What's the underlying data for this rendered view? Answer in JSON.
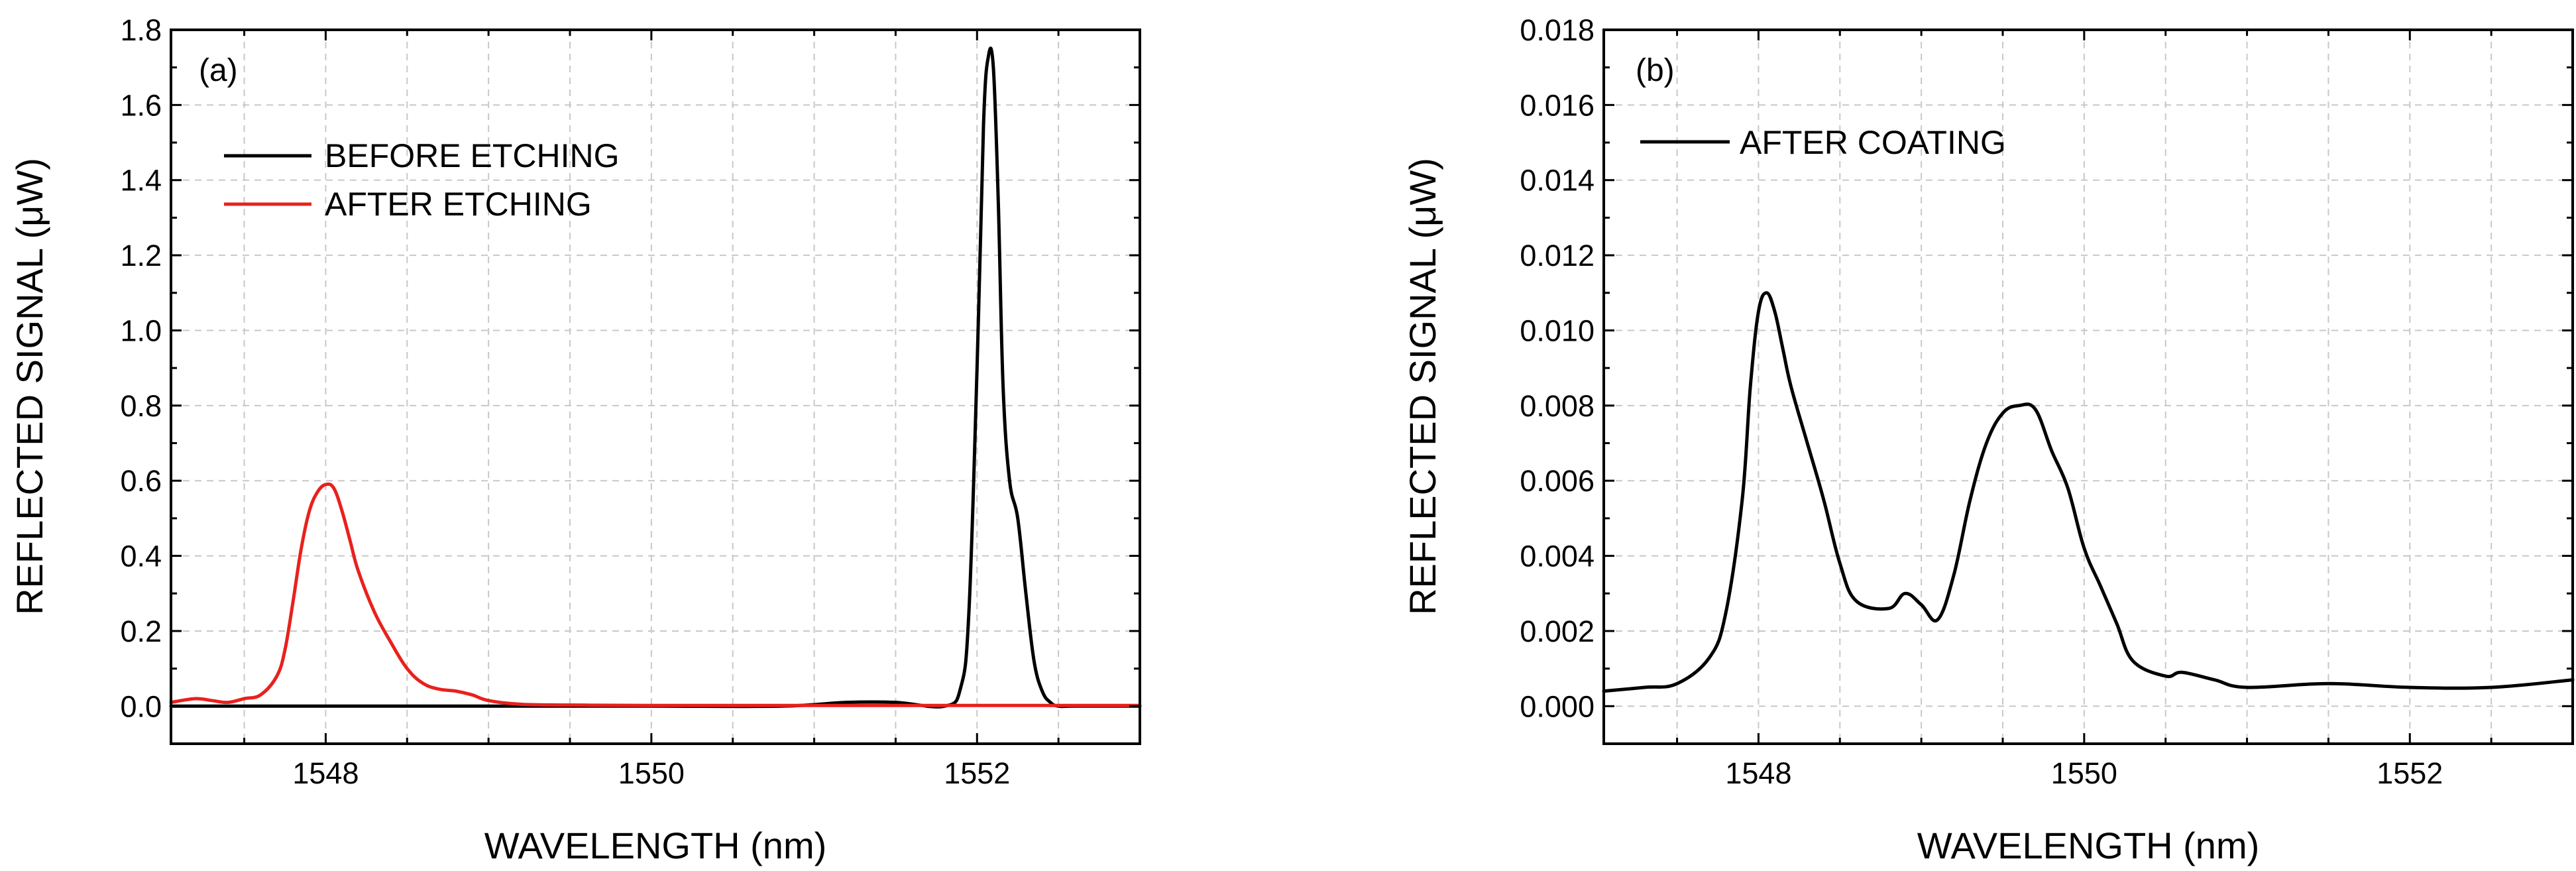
{
  "chart_data": [
    {
      "type": "line",
      "panel_label": "(a)",
      "xlabel": "WAVELENGTH (nm)",
      "ylabel": "REFLECTED SIGNAL (μW)",
      "xlim": [
        1547.05,
        1553.0
      ],
      "ylim": [
        -0.1,
        1.8
      ],
      "xticks": [
        1548,
        1550,
        1552
      ],
      "xtick_labels": [
        "1548",
        "1550",
        "1552"
      ],
      "yticks": [
        0.0,
        0.2,
        0.4,
        0.6,
        0.8,
        1.0,
        1.2,
        1.4,
        1.6,
        1.8
      ],
      "ytick_labels": [
        "0.0",
        "0.2",
        "0.4",
        "0.6",
        "0.8",
        "1.0",
        "1.2",
        "1.4",
        "1.6",
        "1.8"
      ],
      "grid": true,
      "legend_position": "upper-left",
      "series": [
        {
          "name": "BEFORE ETCHING",
          "color": "#000000",
          "x": [
            1547.05,
            1548.0,
            1549.0,
            1550.0,
            1550.8,
            1551.2,
            1551.5,
            1551.8,
            1551.9,
            1551.95,
            1552.0,
            1552.04,
            1552.07,
            1552.1,
            1552.13,
            1552.16,
            1552.2,
            1552.25,
            1552.3,
            1552.35,
            1552.4,
            1552.45,
            1552.5,
            1552.6,
            1553.0
          ],
          "y": [
            0.0,
            0.0,
            0.0,
            0.0,
            0.0,
            0.01,
            0.01,
            0.0,
            0.05,
            0.25,
            0.9,
            1.55,
            1.73,
            1.7,
            1.35,
            0.85,
            0.6,
            0.5,
            0.3,
            0.12,
            0.04,
            0.01,
            0.0,
            0.0,
            0.0
          ]
        },
        {
          "name": "AFTER ETCHING",
          "color": "#e8211d",
          "x": [
            1547.05,
            1547.2,
            1547.3,
            1547.4,
            1547.5,
            1547.6,
            1547.7,
            1547.75,
            1547.8,
            1547.85,
            1547.9,
            1547.95,
            1548.0,
            1548.05,
            1548.1,
            1548.15,
            1548.2,
            1548.3,
            1548.4,
            1548.5,
            1548.6,
            1548.7,
            1548.8,
            1548.9,
            1549.0,
            1549.2,
            1549.5,
            1550.0,
            1551.0,
            1552.0,
            1553.0
          ],
          "y": [
            0.01,
            0.02,
            0.015,
            0.01,
            0.02,
            0.03,
            0.08,
            0.15,
            0.28,
            0.42,
            0.52,
            0.57,
            0.59,
            0.58,
            0.52,
            0.44,
            0.36,
            0.25,
            0.17,
            0.1,
            0.06,
            0.045,
            0.04,
            0.03,
            0.015,
            0.005,
            0.003,
            0.002,
            0.002,
            0.002,
            0.002
          ]
        }
      ]
    },
    {
      "type": "line",
      "panel_label": "(b)",
      "xlabel": "WAVELENGTH (nm)",
      "ylabel": "REFLECTED SIGNAL (μW)",
      "xlim": [
        1547.05,
        1553.0
      ],
      "ylim": [
        -0.001,
        0.018
      ],
      "xticks": [
        1548,
        1550,
        1552
      ],
      "xtick_labels": [
        "1548",
        "1550",
        "1552"
      ],
      "yticks": [
        0.0,
        0.002,
        0.004,
        0.006,
        0.008,
        0.01,
        0.012,
        0.014,
        0.016,
        0.018
      ],
      "ytick_labels": [
        "0.000",
        "0.002",
        "0.004",
        "0.006",
        "0.008",
        "0.010",
        "0.012",
        "0.014",
        "0.016",
        "0.018"
      ],
      "grid": true,
      "legend_position": "upper-left",
      "series": [
        {
          "name": "AFTER COATING",
          "color": "#000000",
          "x": [
            1547.05,
            1547.3,
            1547.5,
            1547.7,
            1547.8,
            1547.9,
            1547.95,
            1548.0,
            1548.05,
            1548.1,
            1548.15,
            1548.2,
            1548.3,
            1548.4,
            1548.5,
            1548.6,
            1548.8,
            1548.9,
            1549.0,
            1549.1,
            1549.2,
            1549.3,
            1549.4,
            1549.5,
            1549.6,
            1549.7,
            1549.8,
            1549.9,
            1550.0,
            1550.1,
            1550.2,
            1550.3,
            1550.5,
            1550.6,
            1550.8,
            1551.0,
            1551.5,
            1552.0,
            1552.5,
            1553.0
          ],
          "y": [
            0.0004,
            0.0005,
            0.0006,
            0.0013,
            0.0025,
            0.0055,
            0.0085,
            0.0105,
            0.011,
            0.0105,
            0.0095,
            0.0085,
            0.007,
            0.0055,
            0.0038,
            0.0028,
            0.0026,
            0.003,
            0.0027,
            0.0023,
            0.0035,
            0.0055,
            0.007,
            0.0078,
            0.008,
            0.0079,
            0.0068,
            0.0058,
            0.0042,
            0.0032,
            0.0022,
            0.0012,
            0.0008,
            0.0009,
            0.0007,
            0.0005,
            0.0006,
            0.0005,
            0.0005,
            0.0007
          ]
        }
      ]
    }
  ]
}
